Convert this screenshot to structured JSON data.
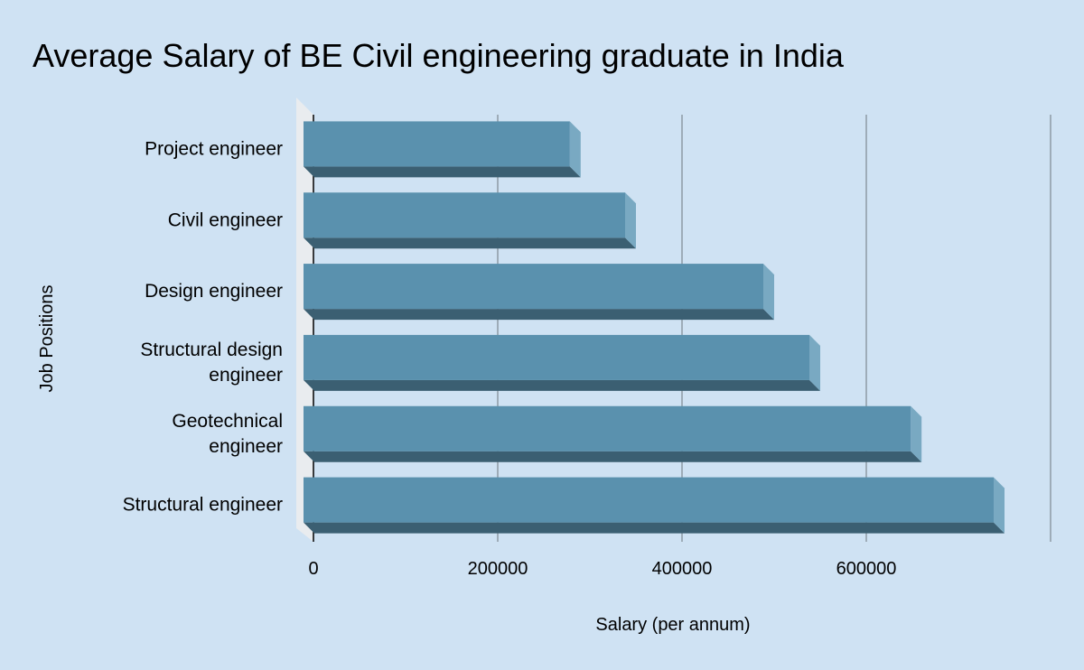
{
  "chart_data": {
    "type": "bar",
    "orientation": "horizontal",
    "title": "Average Salary of BE Civil engineering graduate in India",
    "xlabel": "Salary (per annum)",
    "ylabel": "Job Positions",
    "categories": [
      [
        "Project engineer"
      ],
      [
        "Civil engineer"
      ],
      [
        "Design engineer"
      ],
      [
        "Structural design",
        "engineer"
      ],
      [
        "Geotechnical",
        "engineer"
      ],
      [
        "Structural engineer"
      ]
    ],
    "values": [
      290000,
      350000,
      500000,
      550000,
      660000,
      750000
    ],
    "xlim": [
      0,
      800000
    ],
    "xticks": [
      "0",
      "200000",
      "400000",
      "600000"
    ],
    "grid": true,
    "legend": "none",
    "colors": {
      "background": "#cfe2f3",
      "bar_front": "#5a91ae",
      "bar_side": "#79a9c2",
      "bar_bottom": "#3b5f72",
      "grid": "#8e9aa4",
      "wall": "#e9ecef"
    }
  }
}
